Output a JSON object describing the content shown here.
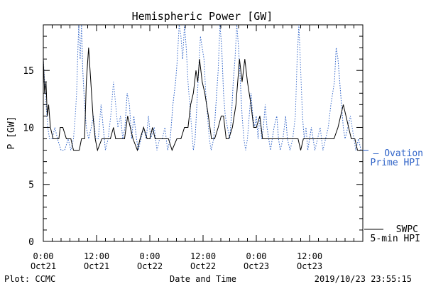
{
  "chart_data": {
    "type": "line",
    "title": "Hemispheric Power [GW]",
    "xlabel": "Date and Time",
    "ylabel": "P [GW]",
    "ylim": [
      0,
      19
    ],
    "xlim_hours": [
      0,
      72
    ],
    "y_ticks": [
      0,
      5,
      10,
      15
    ],
    "x_ticks": [
      {
        "h": 0,
        "time": "0:00",
        "date": "Oct21"
      },
      {
        "h": 12,
        "time": "12:00",
        "date": "Oct21"
      },
      {
        "h": 24,
        "time": "0:00",
        "date": "Oct22"
      },
      {
        "h": 36,
        "time": "12:00",
        "date": "Oct22"
      },
      {
        "h": 48,
        "time": "0:00",
        "date": "Oct23"
      },
      {
        "h": 60,
        "time": "12:00",
        "date": "Oct23"
      }
    ],
    "grid": false,
    "legend_position": "right",
    "series": [
      {
        "name": "SWPC 5-min HPI",
        "color": "#000000",
        "style": "solid",
        "points": [
          [
            0,
            16
          ],
          [
            0.3,
            13
          ],
          [
            0.6,
            14
          ],
          [
            0.9,
            11
          ],
          [
            1.2,
            12
          ],
          [
            1.6,
            10
          ],
          [
            2.2,
            9
          ],
          [
            3.5,
            9
          ],
          [
            3.8,
            10
          ],
          [
            4.4,
            10
          ],
          [
            5.2,
            9
          ],
          [
            6.2,
            9
          ],
          [
            6.8,
            8
          ],
          [
            7.4,
            8
          ],
          [
            8.1,
            8
          ],
          [
            8.6,
            9
          ],
          [
            9.3,
            9
          ],
          [
            9.7,
            14
          ],
          [
            10.2,
            17
          ],
          [
            10.7,
            14
          ],
          [
            11.2,
            11
          ],
          [
            11.7,
            9
          ],
          [
            12.2,
            8
          ],
          [
            13.2,
            9
          ],
          [
            15.1,
            9
          ],
          [
            15.8,
            10
          ],
          [
            16.3,
            9
          ],
          [
            18.3,
            9
          ],
          [
            19.0,
            11
          ],
          [
            19.6,
            10
          ],
          [
            20.2,
            9
          ],
          [
            21.2,
            8
          ],
          [
            21.8,
            9
          ],
          [
            22.6,
            10
          ],
          [
            23.4,
            9
          ],
          [
            24.0,
            9
          ],
          [
            24.6,
            10
          ],
          [
            25.2,
            9
          ],
          [
            26.2,
            9
          ],
          [
            27.0,
            9
          ],
          [
            28.2,
            9
          ],
          [
            29.0,
            8
          ],
          [
            30.1,
            9
          ],
          [
            31.0,
            9
          ],
          [
            31.8,
            10
          ],
          [
            32.6,
            10
          ],
          [
            33.2,
            12
          ],
          [
            33.8,
            13
          ],
          [
            34.4,
            15
          ],
          [
            34.8,
            14
          ],
          [
            35.2,
            16
          ],
          [
            35.8,
            14
          ],
          [
            36.4,
            13
          ],
          [
            37.2,
            11
          ],
          [
            37.9,
            9
          ],
          [
            38.6,
            9
          ],
          [
            39.4,
            10
          ],
          [
            40.1,
            11
          ],
          [
            40.6,
            11
          ],
          [
            41.2,
            9
          ],
          [
            41.8,
            9
          ],
          [
            42.6,
            10
          ],
          [
            43.4,
            12
          ],
          [
            44.2,
            16
          ],
          [
            44.8,
            14
          ],
          [
            45.4,
            16
          ],
          [
            46.0,
            14
          ],
          [
            46.8,
            12
          ],
          [
            47.4,
            10
          ],
          [
            48.0,
            10
          ],
          [
            48.8,
            11
          ],
          [
            49.4,
            9
          ],
          [
            50.2,
            9
          ],
          [
            52.0,
            9
          ],
          [
            54.0,
            9
          ],
          [
            56.0,
            9
          ],
          [
            57.4,
            9
          ],
          [
            58.0,
            8
          ],
          [
            58.6,
            9
          ],
          [
            60.4,
            9
          ],
          [
            62.0,
            9
          ],
          [
            63.3,
            9
          ],
          [
            64.5,
            9
          ],
          [
            65.5,
            9
          ],
          [
            66.4,
            10
          ],
          [
            67.0,
            11
          ],
          [
            67.6,
            12
          ],
          [
            68.2,
            11
          ],
          [
            68.8,
            10
          ],
          [
            69.4,
            9
          ],
          [
            70.2,
            9
          ],
          [
            70.8,
            8
          ],
          [
            71.6,
            8
          ]
        ]
      },
      {
        "name": "Ovation Prime HPI",
        "color": "#2f63c8",
        "style": "dotted",
        "points": [
          [
            0,
            16
          ],
          [
            0.3,
            14
          ],
          [
            0.6,
            12
          ],
          [
            1.0,
            10
          ],
          [
            1.4,
            9
          ],
          [
            2.0,
            9
          ],
          [
            2.6,
            10
          ],
          [
            3.2,
            9
          ],
          [
            4.0,
            8
          ],
          [
            4.8,
            8
          ],
          [
            5.6,
            9
          ],
          [
            6.2,
            8
          ],
          [
            6.8,
            9
          ],
          [
            7.2,
            11
          ],
          [
            7.5,
            13
          ],
          [
            7.8,
            17
          ],
          [
            8.0,
            19
          ],
          [
            8.3,
            16
          ],
          [
            8.6,
            19
          ],
          [
            8.9,
            15
          ],
          [
            9.3,
            12
          ],
          [
            9.7,
            10
          ],
          [
            10.2,
            9
          ],
          [
            10.8,
            10
          ],
          [
            11.3,
            11
          ],
          [
            11.8,
            9
          ],
          [
            12.4,
            9
          ],
          [
            13.0,
            12
          ],
          [
            13.5,
            10
          ],
          [
            14.0,
            8
          ],
          [
            14.6,
            9
          ],
          [
            15.2,
            11
          ],
          [
            15.8,
            14
          ],
          [
            16.3,
            12
          ],
          [
            16.8,
            10
          ],
          [
            17.4,
            11
          ],
          [
            17.9,
            9
          ],
          [
            18.4,
            10
          ],
          [
            18.9,
            13
          ],
          [
            19.4,
            12
          ],
          [
            19.9,
            9
          ],
          [
            20.4,
            11
          ],
          [
            21.0,
            9
          ],
          [
            21.4,
            8
          ],
          [
            22.0,
            9
          ],
          [
            22.6,
            10
          ],
          [
            23.2,
            9
          ],
          [
            23.7,
            11
          ],
          [
            24.2,
            9
          ],
          [
            25.0,
            10
          ],
          [
            25.6,
            8
          ],
          [
            26.2,
            9
          ],
          [
            26.8,
            9
          ],
          [
            27.4,
            10
          ],
          [
            28.0,
            8
          ],
          [
            28.6,
            9
          ],
          [
            29.2,
            12
          ],
          [
            29.8,
            14
          ],
          [
            30.2,
            16
          ],
          [
            30.6,
            19
          ],
          [
            31.0,
            18
          ],
          [
            31.4,
            16
          ],
          [
            31.8,
            19
          ],
          [
            32.2,
            17
          ],
          [
            32.6,
            14
          ],
          [
            33.0,
            12
          ],
          [
            33.4,
            10
          ],
          [
            33.8,
            8
          ],
          [
            34.2,
            9
          ],
          [
            34.6,
            12
          ],
          [
            35.0,
            15
          ],
          [
            35.4,
            18
          ],
          [
            35.8,
            17
          ],
          [
            36.2,
            16
          ],
          [
            36.6,
            13
          ],
          [
            37.0,
            11
          ],
          [
            37.4,
            9
          ],
          [
            37.8,
            8
          ],
          [
            38.4,
            9
          ],
          [
            38.9,
            12
          ],
          [
            39.4,
            15
          ],
          [
            39.8,
            19
          ],
          [
            40.2,
            17
          ],
          [
            40.6,
            13
          ],
          [
            41.0,
            11
          ],
          [
            41.5,
            10
          ],
          [
            42.0,
            9
          ],
          [
            42.4,
            11
          ],
          [
            42.8,
            14
          ],
          [
            43.2,
            16
          ],
          [
            43.6,
            19
          ],
          [
            44.0,
            17
          ],
          [
            44.4,
            14
          ],
          [
            44.8,
            11
          ],
          [
            45.2,
            9
          ],
          [
            45.6,
            8
          ],
          [
            46.0,
            9
          ],
          [
            46.4,
            11
          ],
          [
            46.8,
            13
          ],
          [
            47.2,
            11
          ],
          [
            47.6,
            10
          ],
          [
            48.0,
            11
          ],
          [
            48.4,
            9
          ],
          [
            48.8,
            11
          ],
          [
            49.2,
            9
          ],
          [
            49.6,
            10
          ],
          [
            50.0,
            12
          ],
          [
            50.4,
            10
          ],
          [
            50.8,
            9
          ],
          [
            51.2,
            8
          ],
          [
            51.6,
            9
          ],
          [
            52.0,
            10
          ],
          [
            52.6,
            11
          ],
          [
            53.0,
            9
          ],
          [
            53.4,
            8
          ],
          [
            54.0,
            9
          ],
          [
            54.6,
            11
          ],
          [
            55.0,
            9
          ],
          [
            55.6,
            8
          ],
          [
            56.2,
            9
          ],
          [
            56.8,
            11
          ],
          [
            57.2,
            16
          ],
          [
            57.6,
            19
          ],
          [
            58.0,
            15
          ],
          [
            58.4,
            11
          ],
          [
            58.8,
            9
          ],
          [
            59.2,
            10
          ],
          [
            59.6,
            8
          ],
          [
            60.0,
            9
          ],
          [
            60.4,
            10
          ],
          [
            60.8,
            9
          ],
          [
            61.2,
            8
          ],
          [
            61.8,
            9
          ],
          [
            62.4,
            10
          ],
          [
            63.0,
            8
          ],
          [
            63.6,
            9
          ],
          [
            64.2,
            10
          ],
          [
            64.8,
            12
          ],
          [
            65.2,
            13
          ],
          [
            65.6,
            14
          ],
          [
            66.0,
            17
          ],
          [
            66.4,
            16
          ],
          [
            66.8,
            14
          ],
          [
            67.2,
            12
          ],
          [
            67.6,
            10
          ],
          [
            68.0,
            9
          ],
          [
            68.6,
            10
          ],
          [
            69.2,
            11
          ],
          [
            69.6,
            10
          ],
          [
            70.0,
            9
          ],
          [
            70.4,
            8
          ],
          [
            71.0,
            9
          ],
          [
            71.6,
            8
          ]
        ]
      }
    ]
  },
  "footer": {
    "plot_by": "Plot: CCMC",
    "timestamp": "2019/10/23 23:55:15"
  },
  "legend": {
    "ovation_line1": "— Ovation",
    "ovation_line2": "Prime HPI",
    "swpc_line1": "SWPC",
    "swpc_line2": "5-min HPI"
  }
}
